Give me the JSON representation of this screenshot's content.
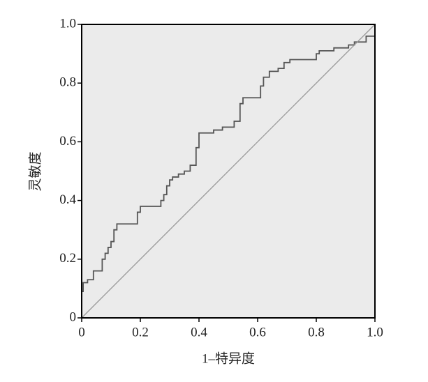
{
  "chart_data": {
    "type": "line",
    "xlabel": "1–特异度",
    "ylabel": "灵敏度",
    "xlim": [
      0,
      1
    ],
    "ylim": [
      0,
      1
    ],
    "xticks": [
      0,
      0.2,
      0.4,
      0.6,
      0.8,
      {
        "value": 1,
        "label": "1.0"
      }
    ],
    "yticks": [
      0,
      0.2,
      0.4,
      0.6,
      0.8,
      {
        "value": 1,
        "label": "1.0"
      }
    ],
    "background": "#ebebeb",
    "series": [
      {
        "color": "#555555",
        "x": [
          0,
          0,
          0.005,
          0.005,
          0.02,
          0.02,
          0.04,
          0.04,
          0.07,
          0.07,
          0.08,
          0.08,
          0.09,
          0.09,
          0.1,
          0.1,
          0.11,
          0.11,
          0.12,
          0.12,
          0.19,
          0.19,
          0.2,
          0.2,
          0.27,
          0.27,
          0.28,
          0.28,
          0.29,
          0.29,
          0.3,
          0.3,
          0.31,
          0.31,
          0.33,
          0.33,
          0.35,
          0.35,
          0.37,
          0.37,
          0.39,
          0.39,
          0.4,
          0.4,
          0.45,
          0.45,
          0.48,
          0.48,
          0.52,
          0.52,
          0.54,
          0.54,
          0.55,
          0.55,
          0.61,
          0.61,
          0.62,
          0.62,
          0.64,
          0.64,
          0.67,
          0.67,
          0.69,
          0.69,
          0.71,
          0.71,
          0.8,
          0.8,
          0.81,
          0.81,
          0.86,
          0.86,
          0.91,
          0.91,
          0.93,
          0.93,
          0.97,
          0.97,
          1
        ],
        "values": [
          0,
          0.09,
          0.09,
          0.12,
          0.12,
          0.13,
          0.13,
          0.16,
          0.16,
          0.2,
          0.2,
          0.22,
          0.22,
          0.24,
          0.24,
          0.26,
          0.26,
          0.3,
          0.3,
          0.32,
          0.32,
          0.36,
          0.36,
          0.38,
          0.38,
          0.4,
          0.4,
          0.42,
          0.42,
          0.45,
          0.45,
          0.47,
          0.47,
          0.48,
          0.48,
          0.49,
          0.49,
          0.5,
          0.5,
          0.52,
          0.52,
          0.58,
          0.58,
          0.63,
          0.63,
          0.64,
          0.64,
          0.65,
          0.65,
          0.67,
          0.67,
          0.73,
          0.73,
          0.75,
          0.75,
          0.79,
          0.79,
          0.82,
          0.82,
          0.84,
          0.84,
          0.85,
          0.85,
          0.87,
          0.87,
          0.88,
          0.88,
          0.9,
          0.9,
          0.91,
          0.91,
          0.92,
          0.92,
          0.93,
          0.93,
          0.94,
          0.94,
          0.96,
          0.96
        ]
      },
      {
        "color": "#999999",
        "x": [
          0,
          1
        ],
        "values": [
          0,
          1
        ]
      }
    ]
  }
}
